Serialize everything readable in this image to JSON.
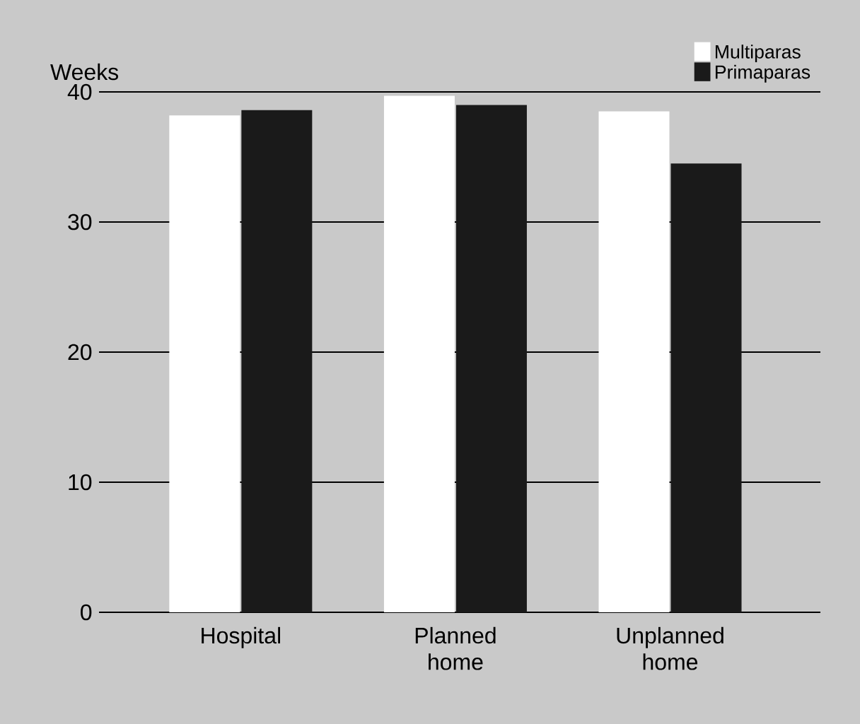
{
  "chart_data": {
    "type": "bar",
    "ylabel": "Weeks",
    "categories": [
      "Hospital",
      "Planned home",
      "Unplanned home"
    ],
    "series": [
      {
        "name": "Multiparas",
        "color": "#ffffff",
        "values": [
          38.2,
          39.7,
          38.5
        ]
      },
      {
        "name": "Primaparas",
        "color": "#1a1a1a",
        "values": [
          38.6,
          39.0,
          34.5
        ]
      }
    ],
    "ylim": [
      0,
      40
    ],
    "yticks": [
      0,
      10,
      20,
      30,
      40
    ],
    "grid": "y",
    "legend": "top right"
  }
}
